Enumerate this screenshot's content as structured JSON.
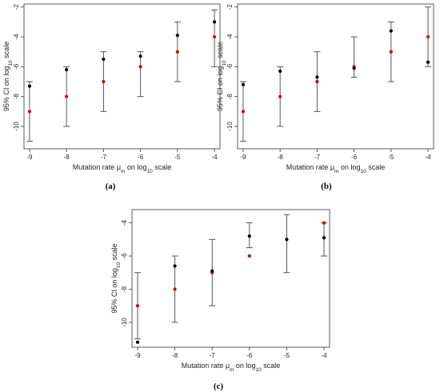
{
  "chart_data": [
    {
      "type": "scatter",
      "caption": "(a)",
      "xlabel": "Mutation rate μm on log10 scale",
      "ylabel": "95% CI on log10 scale",
      "x": [
        -9,
        -8,
        -7,
        -6,
        -5,
        -4
      ],
      "xlim": [
        -9.15,
        -3.85
      ],
      "ylim": [
        -11.5,
        -1.8
      ],
      "yticks": [
        -10,
        -8,
        -6,
        -4,
        -2
      ],
      "series": [
        {
          "color": "#d00000",
          "values": [
            -9,
            -8,
            -7,
            -6,
            -5,
            -4
          ]
        },
        {
          "color": "#000000",
          "values": [
            -7.3,
            -6.2,
            -5.5,
            -5.3,
            -3.9,
            -3.0
          ]
        }
      ],
      "ci_low": [
        -11,
        -10,
        -9,
        -8,
        -7,
        -6
      ],
      "ci_high": [
        -7,
        -6,
        -5,
        -5,
        -3,
        -2.2
      ]
    },
    {
      "type": "scatter",
      "caption": "(b)",
      "xlabel": "Mutation rate μm on log10 scale",
      "ylabel": "95% CI on log10 scale",
      "x": [
        -9,
        -8,
        -7,
        -6,
        -5,
        -4
      ],
      "xlim": [
        -9.15,
        -3.85
      ],
      "ylim": [
        -11.5,
        -1.8
      ],
      "yticks": [
        -10,
        -8,
        -6,
        -4,
        -2
      ],
      "series": [
        {
          "color": "#d00000",
          "values": [
            -9,
            -8,
            -7,
            -6,
            -5,
            -4
          ]
        },
        {
          "color": "#000000",
          "values": [
            -7.2,
            -6.3,
            -6.7,
            -6.1,
            -3.6,
            -5.7
          ]
        }
      ],
      "ci_low": [
        -11,
        -10,
        -9,
        -6.7,
        -7,
        -6
      ],
      "ci_high": [
        -7,
        -6,
        -5,
        -4,
        -3,
        -2
      ]
    },
    {
      "type": "scatter",
      "caption": "(c)",
      "xlabel": "Mutation rate μm on log10 scale",
      "ylabel": "95% CI on log10 scale",
      "x": [
        -9,
        -8,
        -7,
        -6,
        -5,
        -4
      ],
      "xlim": [
        -9.15,
        -3.85
      ],
      "ylim": [
        -11.5,
        -3.2
      ],
      "yticks": [
        -10,
        -8,
        -6,
        -4
      ],
      "series": [
        {
          "color": "#d00000",
          "values": [
            -9,
            -8,
            -7,
            -6,
            -5,
            -4
          ]
        },
        {
          "color": "#000000",
          "values": [
            -11.2,
            -6.6,
            -6.9,
            -4.8,
            -5,
            -4.9
          ]
        }
      ],
      "ci_low": [
        -11,
        -10,
        -9,
        -5.5,
        -7,
        -6
      ],
      "ci_high": [
        -7,
        -6,
        -5,
        -4,
        -3.5,
        -4
      ]
    }
  ]
}
